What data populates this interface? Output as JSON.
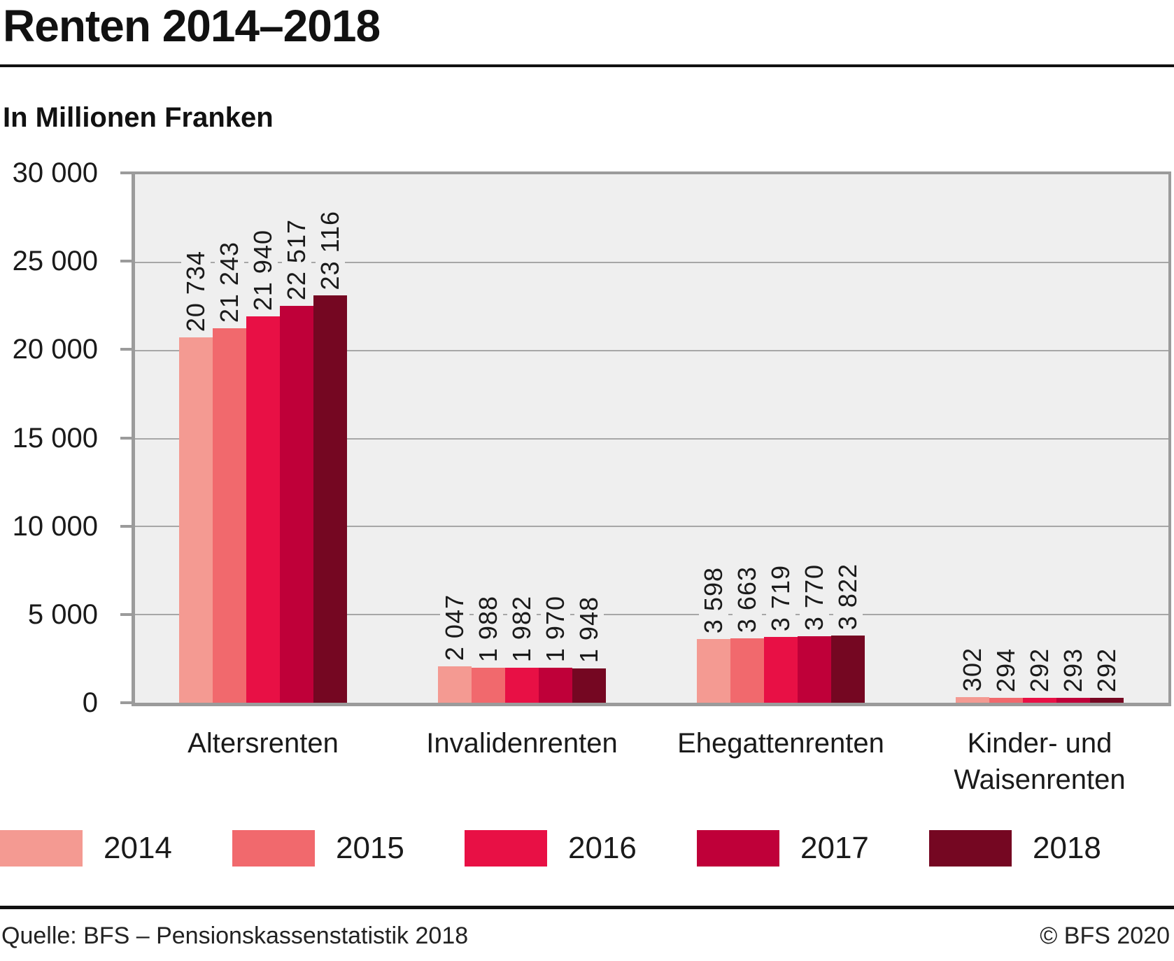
{
  "header": {
    "title": "Renten 2014–2018",
    "subtitle": "In Millionen Franken"
  },
  "footer": {
    "source": "Quelle: BFS – Pensionskassenstatistik 2018",
    "copyright": "© BFS 2020"
  },
  "chart_data": {
    "type": "bar",
    "title": "Renten 2014–2018",
    "unit_label": "In Millionen Franken",
    "categories": [
      "Altersrenten",
      "Invalidenrenten",
      "Ehegattenrenten",
      "Kinder- und Waisenrenten"
    ],
    "series": [
      {
        "name": "2014",
        "color": "#f49a92",
        "values": [
          20734,
          2047,
          3598,
          302
        ]
      },
      {
        "name": "2015",
        "color": "#f1696d",
        "values": [
          21243,
          1988,
          3663,
          294
        ]
      },
      {
        "name": "2016",
        "color": "#e81045",
        "values": [
          21940,
          1982,
          3719,
          292
        ]
      },
      {
        "name": "2017",
        "color": "#bf0039",
        "values": [
          22517,
          1970,
          3770,
          293
        ]
      },
      {
        "name": "2018",
        "color": "#750722",
        "values": [
          23116,
          1948,
          3822,
          292
        ]
      }
    ],
    "ylim": [
      0,
      30000
    ],
    "ytick_step": 5000,
    "ytick_labels": [
      "30 000",
      "25 000",
      "20 000",
      "15 000",
      "10 000",
      "5 000",
      "0"
    ],
    "grid": true,
    "legend_position": "bottom",
    "value_labels_rotated": true,
    "plot_background": "#efefef",
    "gridline_color": "#a7a7a7",
    "axis_color": "#9b9b9b"
  }
}
